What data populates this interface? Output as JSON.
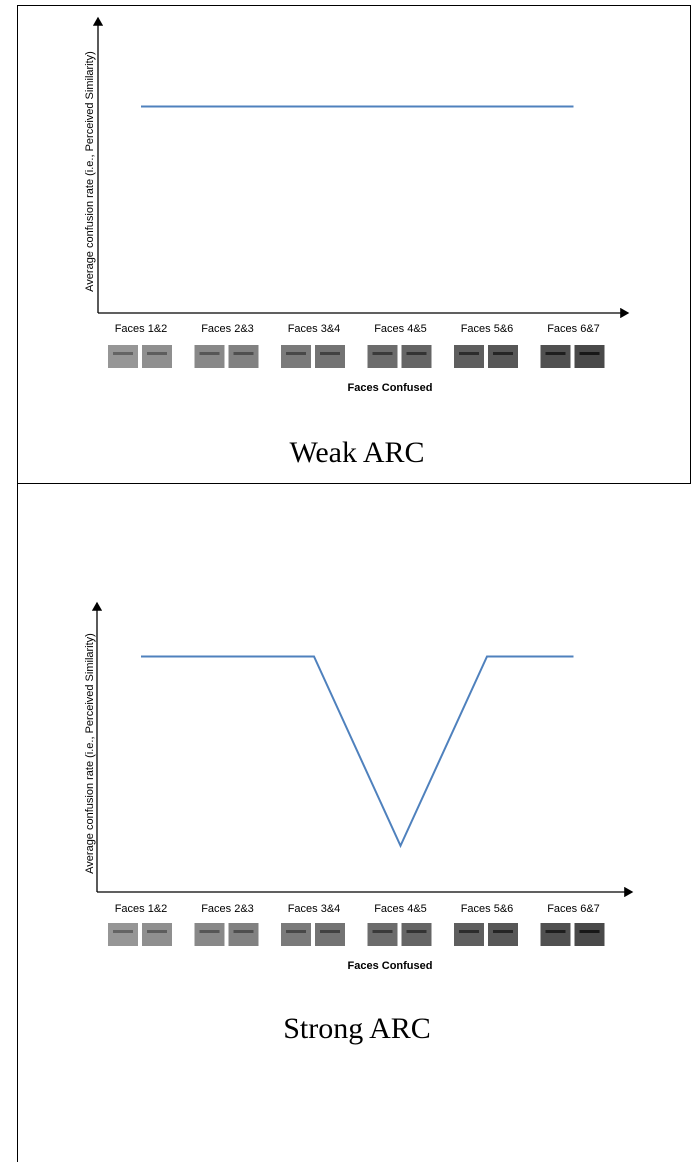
{
  "chart_data": [
    {
      "type": "line",
      "title": "Weak ARC",
      "y_label": "Average confusion rate (i.e., Perceived Similarity)",
      "x_label": "Faces Confused",
      "categories": [
        "Faces 1&2",
        "Faces 2&3",
        "Faces 3&4",
        "Faces 4&5",
        "Faces 5&6",
        "Faces 6&7"
      ],
      "series": [
        {
          "color": "#4f81bd",
          "values": [
            0.7,
            0.7,
            0.7,
            0.7,
            0.7,
            0.7
          ]
        }
      ],
      "ylim": [
        0,
        1
      ]
    },
    {
      "type": "line",
      "title": "Strong ARC",
      "y_label": "Average confusion rate (i.e., Perceived Similarity)",
      "x_label": "Faces Confused",
      "categories": [
        "Faces 1&2",
        "Faces 2&3",
        "Faces 3&4",
        "Faces 4&5",
        "Faces 5&6",
        "Faces 6&7"
      ],
      "series": [
        {
          "color": "#4f81bd",
          "values": [
            0.815,
            0.815,
            0.815,
            0.16,
            0.815,
            0.815
          ]
        }
      ],
      "ylim": [
        0,
        1
      ]
    }
  ]
}
